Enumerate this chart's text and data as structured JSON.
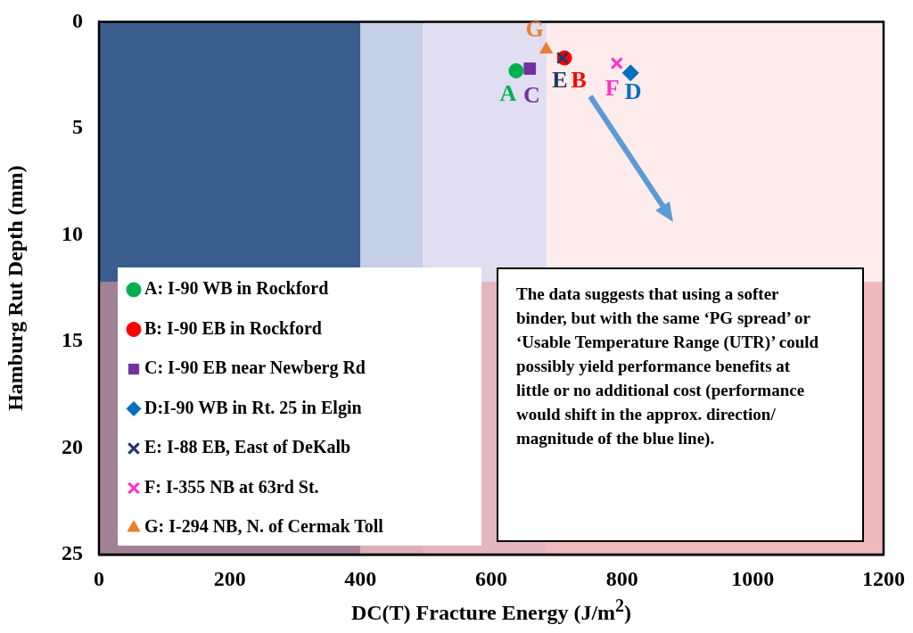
{
  "chart_data": {
    "type": "scatter",
    "xlabel": "DC(T) Fracture Energy (J/m$^{2}$)",
    "ylabel": "Hamburg Rut Depth (mm)",
    "xlim": [
      0,
      1200
    ],
    "xticks": [
      0,
      200,
      400,
      600,
      800,
      1000,
      1200
    ],
    "ylim": [
      25,
      0
    ],
    "yticks": [
      0,
      5,
      10,
      15,
      20,
      25
    ],
    "grid": false,
    "legend": "bottom left",
    "series": [
      {
        "name": "A: I-90 WB in Rockford",
        "color": "#00b050",
        "marker": "circle",
        "x": [
          638
        ],
        "values": [
          2.3
        ]
      },
      {
        "name": "B: I-90 EB in Rockford",
        "color": "#ff0000",
        "marker": "circle",
        "x": [
          712
        ],
        "values": [
          1.7
        ]
      },
      {
        "name": "C: I-90 EB near Newberg Rd",
        "color": "#7030a0",
        "marker": "square",
        "x": [
          659
        ],
        "values": [
          2.2
        ]
      },
      {
        "name": "D:I-90 WB in Rt. 25 in Elgin",
        "color": "#0070c0",
        "marker": "diamond",
        "x": [
          813
        ],
        "values": [
          2.4
        ]
      },
      {
        "name": "E: I-88 EB, East of DeKalb",
        "color": "#1f3864",
        "marker": "cross",
        "x": [
          709
        ],
        "values": [
          1.7
        ]
      },
      {
        "name": "F: I-355 NB at 63rd St.",
        "color": "#ff33cc",
        "marker": "cross",
        "x": [
          792
        ],
        "values": [
          1.95
        ]
      },
      {
        "name": "G: I-294 NB, N. of Cermak Toll",
        "color": "#ed7d31",
        "marker": "triangle",
        "x": [
          684
        ],
        "values": [
          1.3
        ]
      }
    ],
    "bands": [
      {
        "axis": "x",
        "from": 0,
        "to": 400,
        "color": "#3a5d8d"
      },
      {
        "axis": "x",
        "from": 400,
        "to": 495,
        "color": "#c5cfe6"
      },
      {
        "axis": "x",
        "from": 495,
        "to": 685,
        "color": "#e0def0"
      },
      {
        "axis": "x",
        "from": 685,
        "to": 1200,
        "color": "#fdeceb"
      },
      {
        "axis": "y",
        "from": 12.2,
        "to": 25,
        "color": "#e89a9c"
      }
    ],
    "annotations": [
      "A",
      "B",
      "C",
      "D",
      "E",
      "F",
      "G",
      "The data suggests that using a softer binder, but with the same ‘PG spread’ or ‘Usable Temperature Range (UTR)’ could possibly yield performance benefits at little or no additional cost (performance would shift in the approx. direction/ magnitude of the blue line)."
    ]
  }
}
